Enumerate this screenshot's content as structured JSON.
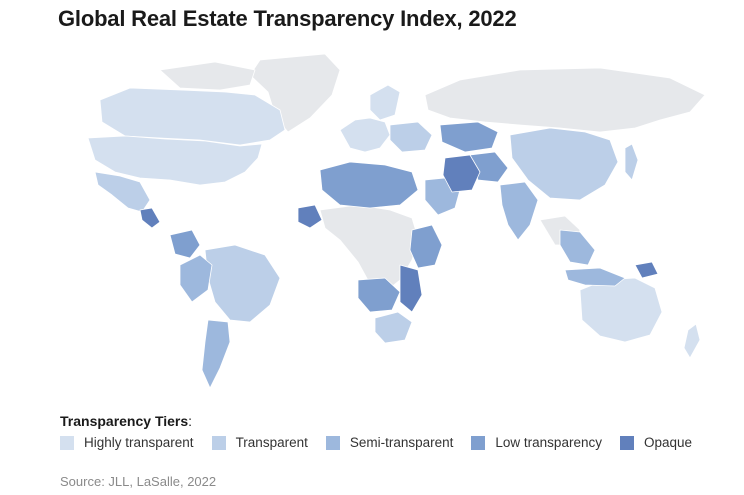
{
  "title": "Global Real Estate Transparency Index, 2022",
  "legend": {
    "title": "Transparency Tiers",
    "title_suffix": ":",
    "tiers": [
      {
        "label": "Highly transparent",
        "color": "#d4e0ef"
      },
      {
        "label": "Transparent",
        "color": "#bccfe8"
      },
      {
        "label": "Semi-transparent",
        "color": "#9db8dd"
      },
      {
        "label": "Low transparency",
        "color": "#7f9fcf"
      },
      {
        "label": "Opaque",
        "color": "#6180bc"
      }
    ]
  },
  "no_data_color": "#e6e8eb",
  "source": "Source: JLL, LaSalle, 2022"
}
